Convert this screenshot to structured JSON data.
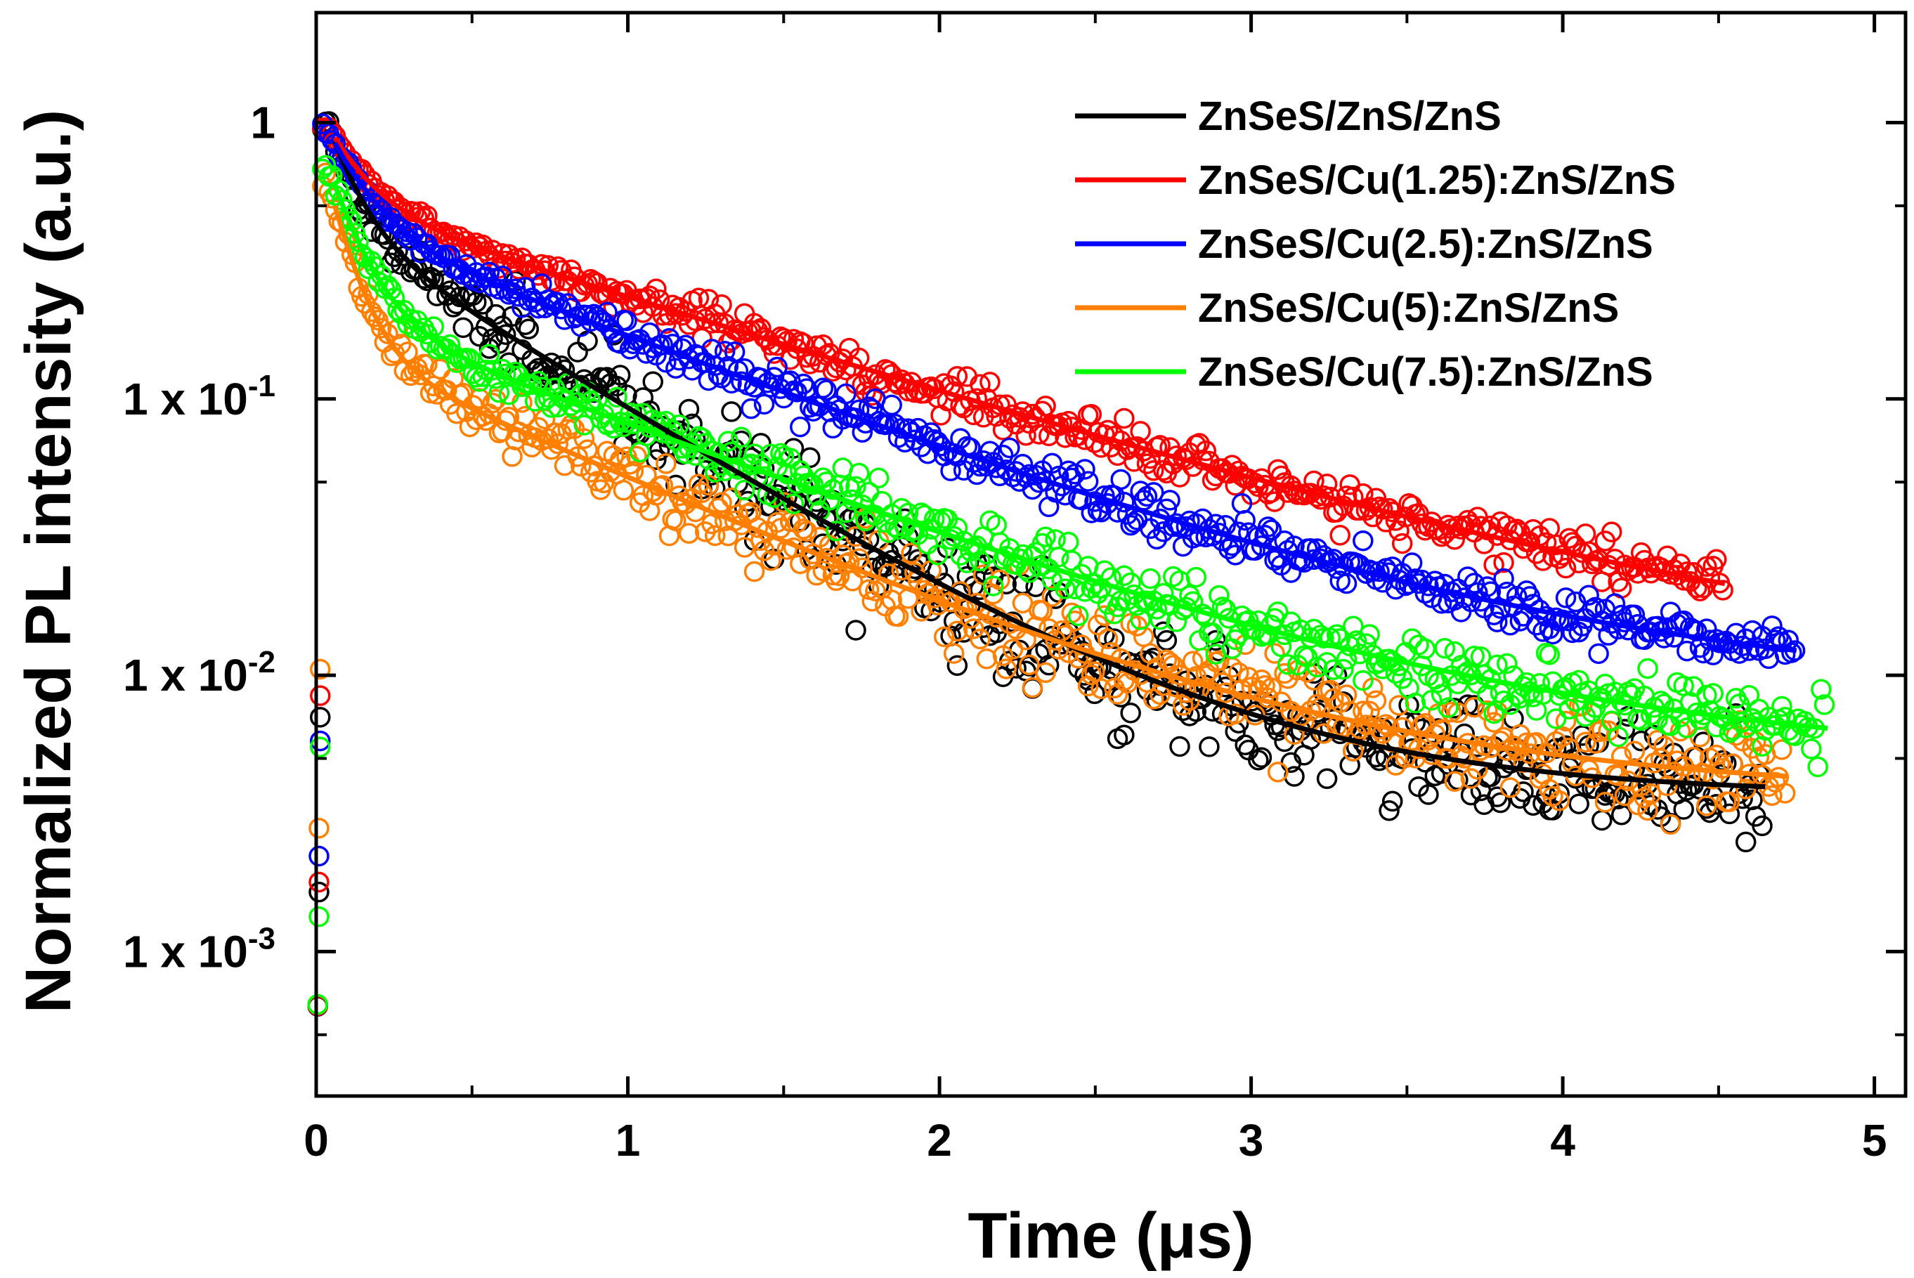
{
  "chart_data": {
    "type": "scatter",
    "title": "",
    "xlabel": "Time (μs)",
    "ylabel": "Normalized PL intensity (a.u.)",
    "xlim": [
      0,
      5.1
    ],
    "ylim": [
      0.0003,
      2.5
    ],
    "yscale": "log",
    "x_ticks": [
      0,
      1,
      2,
      3,
      4,
      5
    ],
    "x_tick_labels": [
      "0",
      "1",
      "2",
      "3",
      "4",
      "5"
    ],
    "y_ticks": [
      1,
      0.1,
      0.01,
      0.001
    ],
    "y_tick_labels": [
      {
        "mantissa": "1",
        "exponent": ""
      },
      {
        "mantissa": "1 x 10",
        "exponent": "-1"
      },
      {
        "mantissa": "1 x 10",
        "exponent": "-2"
      },
      {
        "mantissa": "1 x 10",
        "exponent": "-3"
      }
    ],
    "legend_position": "top-right",
    "series": [
      {
        "name": "ZnSeS/ZnS/ZnS",
        "color": "#000000",
        "fit": {
          "a1": 0.55,
          "t1": 0.09,
          "a2": 0.42,
          "t2": 0.62,
          "c": 0.0037
        },
        "t_end": 4.65,
        "noise": 0.24,
        "seed": 11
      },
      {
        "name": "ZnSeS/Cu(1.25):ZnS/ZnS",
        "color": "#ff0000",
        "fit": {
          "a1": 0.45,
          "t1": 0.12,
          "a2": 0.5,
          "t2": 1.2,
          "c": 0.0095
        },
        "t_end": 4.52,
        "noise": 0.08,
        "seed": 23
      },
      {
        "name": "ZnSeS/Cu(2.5):ZnS/ZnS",
        "color": "#0000ff",
        "fit": {
          "a1": 0.5,
          "t1": 0.12,
          "a2": 0.42,
          "t2": 1.0,
          "c": 0.0085
        },
        "t_end": 4.75,
        "noise": 0.1,
        "seed": 37
      },
      {
        "name": "ZnSeS/Cu(5):ZnS/ZnS",
        "color": "#ff7f00",
        "fit": {
          "a1": 0.45,
          "t1": 0.08,
          "a2": 0.15,
          "t2": 0.85,
          "c": 0.0037
        },
        "t_end": 4.72,
        "noise": 0.2,
        "seed": 41
      },
      {
        "name": "ZnSeS/Cu(7.5):ZnS/ZnS",
        "color": "#00ff00",
        "fit": {
          "a1": 0.48,
          "t1": 0.1,
          "a2": 0.2,
          "t2": 1.0,
          "c": 0.0048
        },
        "t_end": 4.85,
        "noise": 0.13,
        "seed": 53
      }
    ]
  }
}
